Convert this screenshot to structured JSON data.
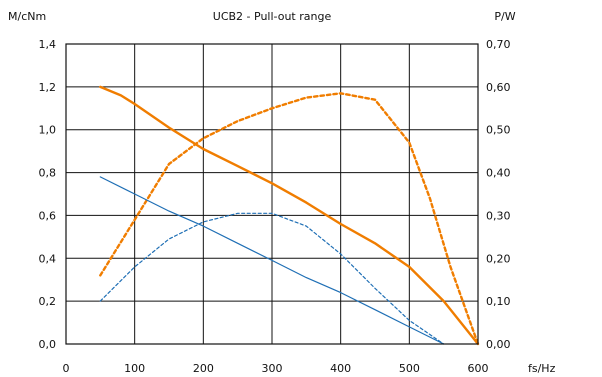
{
  "chart_data": {
    "type": "line",
    "title": "UCB2 - Pull-out range",
    "xlabel": "fs/Hz",
    "ylabel_left": "M/cNm",
    "ylabel_right": "P/W",
    "xlim": [
      0,
      600
    ],
    "ylim_left": [
      0,
      1.4
    ],
    "ylim_right": [
      0,
      0.7
    ],
    "x_ticks": [
      0,
      100,
      200,
      300,
      400,
      500,
      600
    ],
    "x_tick_labels": [
      "0",
      "100",
      "200",
      "300",
      "400",
      "500",
      "600"
    ],
    "y_left_ticks": [
      0,
      0.2,
      0.4,
      0.6,
      0.8,
      1.0,
      1.2,
      1.4
    ],
    "y_left_tick_labels": [
      "0,0",
      "0,2",
      "0,4",
      "0,6",
      "0,8",
      "1,0",
      "1,2",
      "1,4"
    ],
    "y_right_ticks": [
      0,
      0.1,
      0.2,
      0.3,
      0.4,
      0.5,
      0.6,
      0.7
    ],
    "y_right_tick_labels": [
      "0,00",
      "0,10",
      "0,20",
      "0,30",
      "0,40",
      "0,50",
      "0,60",
      "0,70"
    ],
    "grid": true,
    "legend": "none",
    "series": [
      {
        "axis": "left",
        "style": "solid",
        "color": "#f07d00",
        "points": [
          [
            50,
            1.2
          ],
          [
            80,
            1.16
          ],
          [
            100,
            1.12
          ],
          [
            150,
            1.01
          ],
          [
            200,
            0.91
          ],
          [
            250,
            0.83
          ],
          [
            300,
            0.75
          ],
          [
            350,
            0.66
          ],
          [
            400,
            0.56
          ],
          [
            450,
            0.47
          ],
          [
            500,
            0.36
          ],
          [
            550,
            0.2
          ],
          [
            600,
            0.0
          ]
        ]
      },
      {
        "axis": "right",
        "style": "dashed",
        "color": "#f07d00",
        "points": [
          [
            50,
            0.16
          ],
          [
            100,
            0.29
          ],
          [
            150,
            0.42
          ],
          [
            200,
            0.48
          ],
          [
            250,
            0.52
          ],
          [
            300,
            0.55
          ],
          [
            350,
            0.575
          ],
          [
            400,
            0.585
          ],
          [
            450,
            0.57
          ],
          [
            500,
            0.47
          ],
          [
            530,
            0.34
          ],
          [
            560,
            0.18
          ],
          [
            600,
            0.0
          ]
        ]
      },
      {
        "axis": "left",
        "style": "solid",
        "color": "#1f6fb5",
        "points": [
          [
            50,
            0.78
          ],
          [
            100,
            0.7
          ],
          [
            150,
            0.62
          ],
          [
            200,
            0.55
          ],
          [
            250,
            0.47
          ],
          [
            300,
            0.39
          ],
          [
            350,
            0.31
          ],
          [
            400,
            0.24
          ],
          [
            450,
            0.16
          ],
          [
            500,
            0.08
          ],
          [
            550,
            0.0
          ]
        ]
      },
      {
        "axis": "right",
        "style": "dashed",
        "color": "#1f6fb5",
        "points": [
          [
            50,
            0.1
          ],
          [
            100,
            0.18
          ],
          [
            150,
            0.245
          ],
          [
            200,
            0.285
          ],
          [
            250,
            0.305
          ],
          [
            300,
            0.305
          ],
          [
            350,
            0.275
          ],
          [
            400,
            0.21
          ],
          [
            450,
            0.13
          ],
          [
            500,
            0.055
          ],
          [
            550,
            0.0
          ]
        ]
      }
    ]
  }
}
